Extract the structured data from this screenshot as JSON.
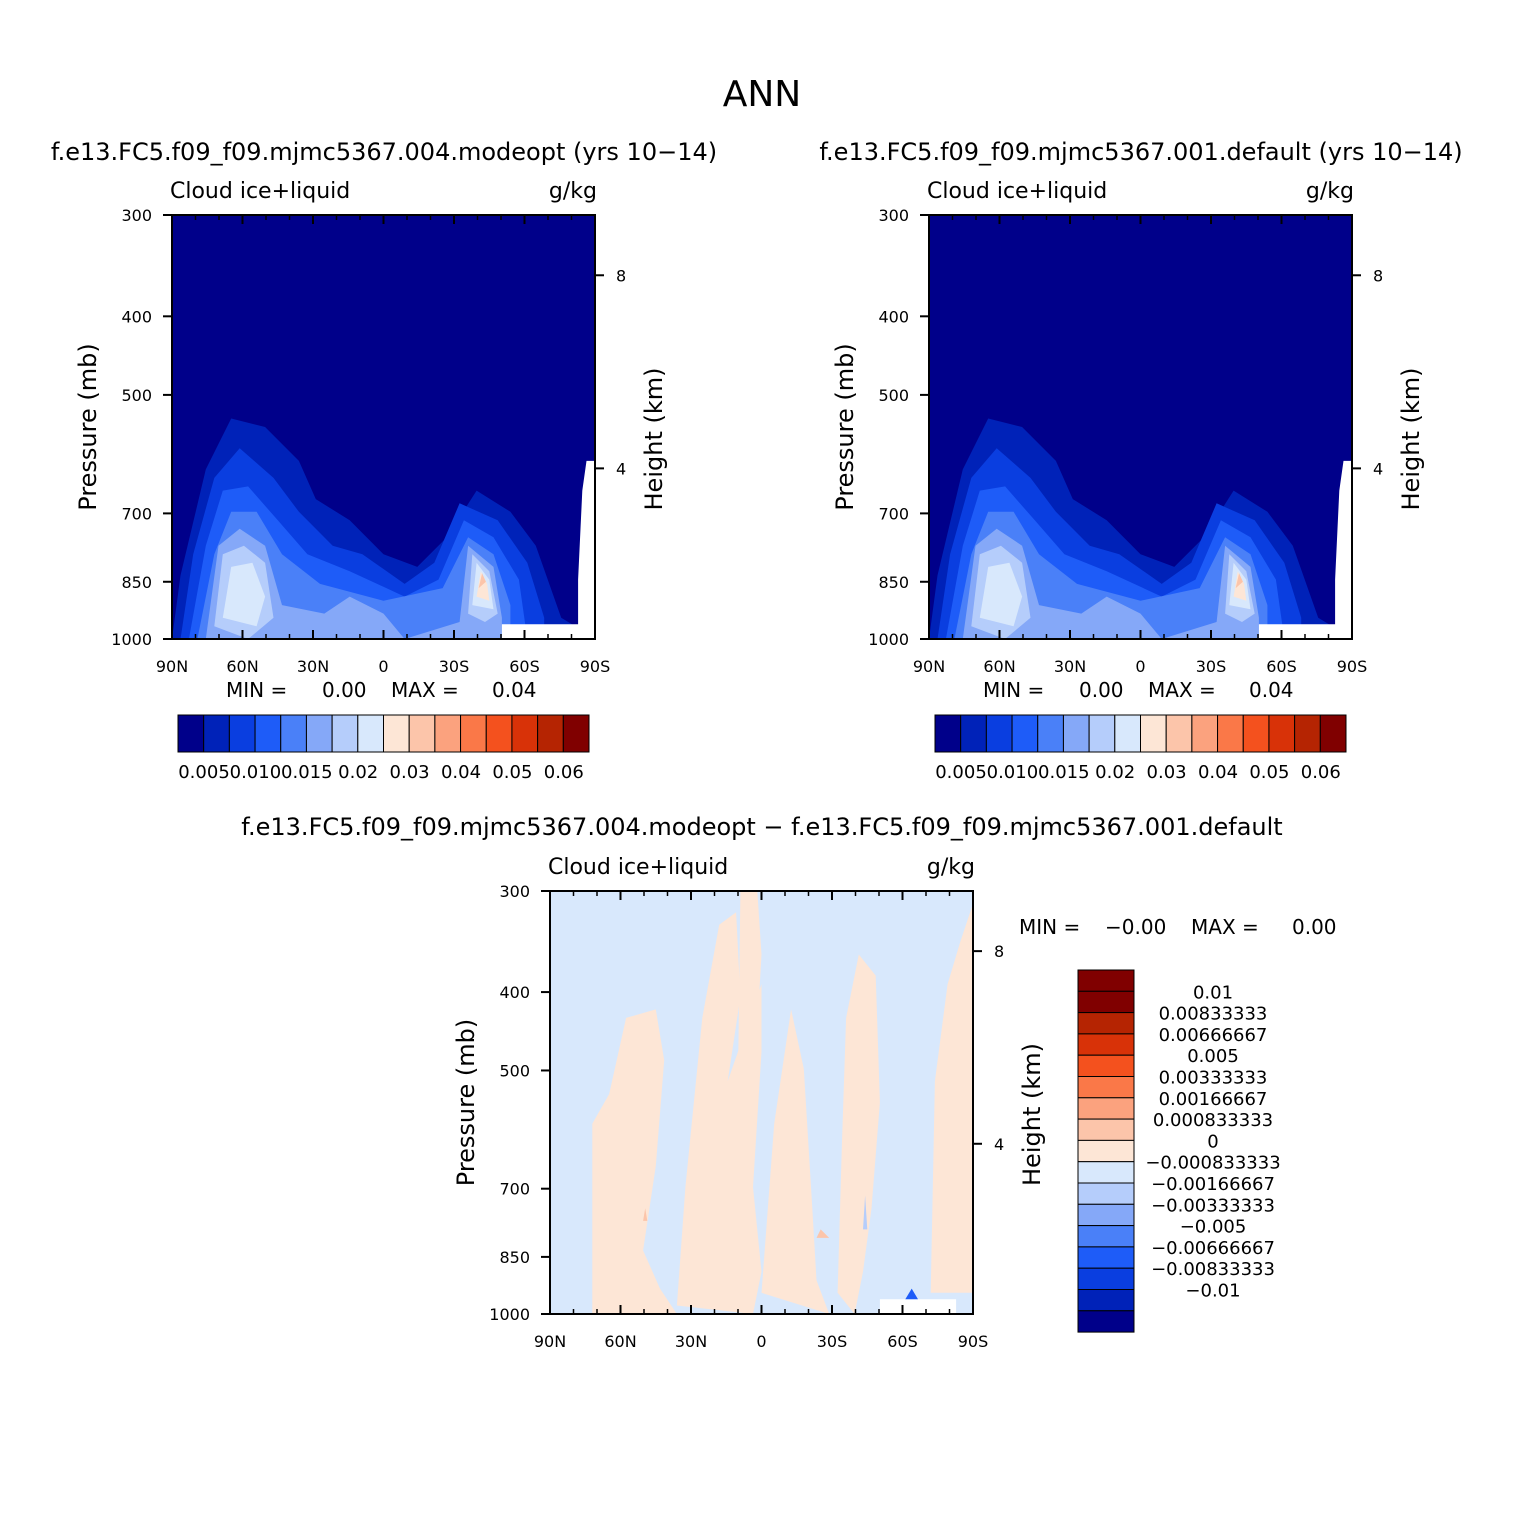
{
  "page_title": "ANN",
  "chart_data": [
    {
      "type": "heatmap",
      "title": "f.e13.FC5.f09_f09.mjmc5367.004.modeopt (yrs 10−14)",
      "left_label": "Cloud ice+liquid",
      "right_label": "g/kg",
      "ylabel": "Pressure (mb)",
      "y2label": "Height (km)",
      "x_ticks": [
        "90N",
        "60N",
        "30N",
        "0",
        "30S",
        "60S",
        "90S"
      ],
      "y_ticks": [
        "300",
        "400",
        "500",
        "700",
        "850",
        "1000"
      ],
      "y2_ticks": [
        "8",
        "4"
      ],
      "ylim": [
        1000,
        300
      ],
      "min_label": "MIN =",
      "min_value": "0.00",
      "max_label": "MAX =",
      "max_value": "0.04",
      "colorbar_labels": [
        "0.005",
        "0.010",
        "0.015",
        "0.02",
        "0.03",
        "0.04",
        "0.05",
        "0.06"
      ],
      "colorbar_colors": [
        "#00008a",
        "#0022b8",
        "#0a3ee0",
        "#1e5cf8",
        "#4a80f8",
        "#85a8f8",
        "#b5cdfb",
        "#d8e8fc",
        "#fde6d6",
        "#fcc5aa",
        "#fba27e",
        "#fa7848",
        "#f4511e",
        "#d83208",
        "#b52402",
        "#800000"
      ],
      "features": {
        "nh_max": {
          "lat": "55N",
          "pressure": 880,
          "value_level": "0.02"
        },
        "sh_max": {
          "lat": "40S",
          "pressure": 870,
          "value_level": "0.04"
        }
      }
    },
    {
      "type": "heatmap",
      "title": "f.e13.FC5.f09_f09.mjmc5367.001.default (yrs 10−14)",
      "left_label": "Cloud ice+liquid",
      "right_label": "g/kg",
      "ylabel": "Pressure (mb)",
      "y2label": "Height (km)",
      "x_ticks": [
        "90N",
        "60N",
        "30N",
        "0",
        "30S",
        "60S",
        "90S"
      ],
      "y_ticks": [
        "300",
        "400",
        "500",
        "700",
        "850",
        "1000"
      ],
      "y2_ticks": [
        "8",
        "4"
      ],
      "ylim": [
        1000,
        300
      ],
      "min_label": "MIN =",
      "min_value": "0.00",
      "max_label": "MAX =",
      "max_value": "0.04",
      "colorbar_labels": [
        "0.005",
        "0.010",
        "0.015",
        "0.02",
        "0.03",
        "0.04",
        "0.05",
        "0.06"
      ],
      "colorbar_colors": [
        "#00008a",
        "#0022b8",
        "#0a3ee0",
        "#1e5cf8",
        "#4a80f8",
        "#85a8f8",
        "#b5cdfb",
        "#d8e8fc",
        "#fde6d6",
        "#fcc5aa",
        "#fba27e",
        "#fa7848",
        "#f4511e",
        "#d83208",
        "#b52402",
        "#800000"
      ],
      "features": {
        "nh_max": {
          "lat": "55N",
          "pressure": 880,
          "value_level": "0.02"
        },
        "sh_max": {
          "lat": "40S",
          "pressure": 870,
          "value_level": "0.04"
        }
      }
    },
    {
      "type": "heatmap",
      "title": "f.e13.FC5.f09_f09.mjmc5367.004.modeopt − f.e13.FC5.f09_f09.mjmc5367.001.default",
      "left_label": "Cloud ice+liquid",
      "right_label": "g/kg",
      "ylabel": "Pressure (mb)",
      "y2label": "Height (km)",
      "x_ticks": [
        "90N",
        "60N",
        "30N",
        "0",
        "30S",
        "60S",
        "90S"
      ],
      "y_ticks": [
        "300",
        "400",
        "500",
        "700",
        "850",
        "1000"
      ],
      "y2_ticks": [
        "8",
        "4"
      ],
      "ylim": [
        1000,
        300
      ],
      "min_label": "MIN =",
      "min_value": "−0.00",
      "max_label": "MAX =",
      "max_value": "0.00",
      "colorbar_labels": [
        "0.01",
        "0.00833333",
        "0.00666667",
        "0.005",
        "0.00333333",
        "0.00166667",
        "0.000833333",
        "0",
        "−0.000833333",
        "−0.00166667",
        "−0.00333333",
        "−0.005",
        "−0.00666667",
        "−0.00833333",
        "−0.01"
      ],
      "colorbar_colors": [
        "#800000",
        "#b52402",
        "#d83208",
        "#f4511e",
        "#fa7848",
        "#fba27e",
        "#fcc5aa",
        "#fde6d6",
        "#d8e8fc",
        "#b5cdfb",
        "#85a8f8",
        "#4a80f8",
        "#1e5cf8",
        "#0a3ee0",
        "#0022b8",
        "#00008a"
      ]
    }
  ]
}
